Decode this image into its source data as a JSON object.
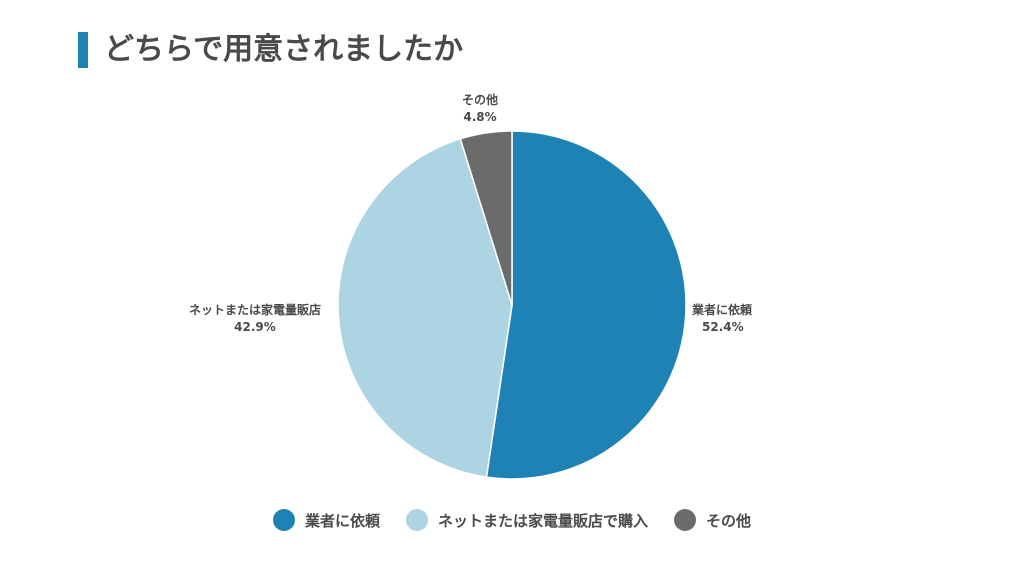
{
  "header": {
    "title": "どちらで用意されましたか"
  },
  "chart_data": {
    "type": "pie",
    "title": "どちらで用意されましたか",
    "slices": [
      {
        "name": "業者に依頼",
        "label": "業者に依頼",
        "value": 52.4,
        "value_label": "52.4%",
        "color": "#1f82b5"
      },
      {
        "name": "ネットまたは家電量販店で購入",
        "label": "ネットまたは家電量販店",
        "value": 42.9,
        "value_label": "42.9%",
        "color": "#acd4e3"
      },
      {
        "name": "その他",
        "label": "その他",
        "value": 4.8,
        "value_label": "4.8%",
        "color": "#6b6b6b"
      }
    ],
    "start_angle": "12 o'clock",
    "direction": "clockwise",
    "legend_position": "bottom"
  }
}
